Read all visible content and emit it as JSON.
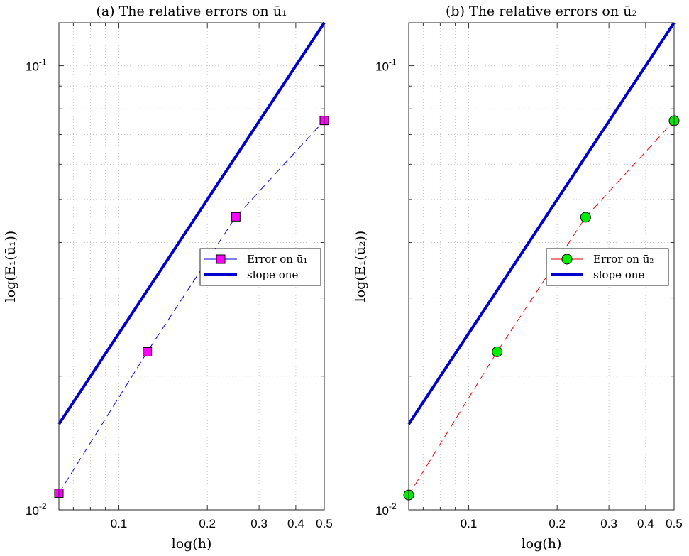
{
  "chart_data": [
    {
      "type": "line",
      "title": "(a) The relative errors on ū₁",
      "xlabel": "log(h)",
      "ylabel": "log(E₁(ū₁))",
      "xscale": "log",
      "yscale": "log",
      "xlim": [
        0.0625,
        0.5
      ],
      "ylim": [
        0.01,
        0.125
      ],
      "grid": true,
      "legend_position": "center-right",
      "x_tick_labels": [
        {
          "value": 0.1,
          "label": "0.1"
        },
        {
          "value": 0.2,
          "label": "0.2"
        },
        {
          "value": 0.3,
          "label": "0.3"
        },
        {
          "value": 0.4,
          "label": "0.4"
        },
        {
          "value": 0.5,
          "label": "0.5"
        }
      ],
      "y_tick_labels": [
        {
          "value": 0.1,
          "base": "10",
          "exp": "-1"
        },
        {
          "value": 0.01,
          "base": "10",
          "exp": "-2"
        }
      ],
      "series": [
        {
          "name": "Error on ū₁",
          "style": "dashed",
          "color": "#0000ee",
          "marker": "square",
          "marker_color": "#ff00ff",
          "x": [
            0.0625,
            0.125,
            0.25,
            0.5
          ],
          "y": [
            0.0109,
            0.0227,
            0.0457,
            0.0753
          ]
        },
        {
          "name": "slope one",
          "style": "solid",
          "color": "#0000cc",
          "marker": "none",
          "x": [
            0.0625,
            0.5
          ],
          "y": [
            0.0156,
            0.125
          ]
        }
      ]
    },
    {
      "type": "line",
      "title": "(b) The relative errors on ū₂",
      "xlabel": "log(h)",
      "ylabel": "log(E₁(ū₂))",
      "xscale": "log",
      "yscale": "log",
      "xlim": [
        0.0625,
        0.5
      ],
      "ylim": [
        0.01,
        0.125
      ],
      "grid": true,
      "legend_position": "center-right",
      "x_tick_labels": [
        {
          "value": 0.1,
          "label": "0.1"
        },
        {
          "value": 0.2,
          "label": "0.2"
        },
        {
          "value": 0.3,
          "label": "0.3"
        },
        {
          "value": 0.4,
          "label": "0.4"
        },
        {
          "value": 0.5,
          "label": "0.5"
        }
      ],
      "y_tick_labels": [
        {
          "value": 0.1,
          "base": "10",
          "exp": "-1"
        },
        {
          "value": 0.01,
          "base": "10",
          "exp": "-2"
        }
      ],
      "series": [
        {
          "name": "Error on ū₂",
          "style": "dashed",
          "color": "#ee0000",
          "marker": "circle",
          "marker_color": "#00ee00",
          "x": [
            0.0625,
            0.125,
            0.25,
            0.5
          ],
          "y": [
            0.0108,
            0.0227,
            0.0456,
            0.0752
          ]
        },
        {
          "name": "slope one",
          "style": "solid",
          "color": "#0000cc",
          "marker": "none",
          "x": [
            0.0625,
            0.5
          ],
          "y": [
            0.0156,
            0.125
          ]
        }
      ]
    }
  ]
}
